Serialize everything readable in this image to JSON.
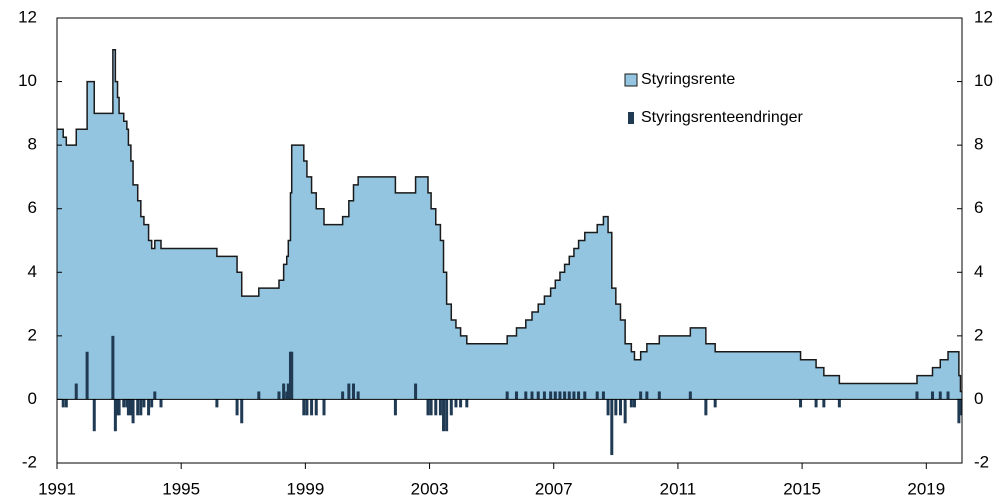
{
  "chart_data": {
    "type": "step-area-bar",
    "series": [
      {
        "name": "Styringsrente",
        "color": "#93c4e0",
        "line_color": "#1a1a1a",
        "x": [
          1991.0,
          1991.2,
          1991.3,
          1991.62,
          1991.97,
          1992.2,
          1992.8,
          1992.88,
          1992.95,
          1993.0,
          1993.15,
          1993.25,
          1993.3,
          1993.38,
          1993.45,
          1993.6,
          1993.7,
          1993.8,
          1993.95,
          1994.05,
          1994.15,
          1994.35,
          1996.15,
          1996.8,
          1996.95,
          1997.5,
          1998.15,
          1998.3,
          1998.4,
          1998.45,
          1998.52,
          1998.56,
          1998.95,
          1999.05,
          1999.2,
          1999.35,
          1999.6,
          2000.2,
          2000.4,
          2000.55,
          2000.7,
          2001.9,
          2002.55,
          2002.95,
          2003.05,
          2003.2,
          2003.35,
          2003.45,
          2003.55,
          2003.7,
          2003.85,
          2004.0,
          2004.2,
          2005.5,
          2005.8,
          2006.1,
          2006.3,
          2006.5,
          2006.7,
          2006.9,
          2007.05,
          2007.2,
          2007.35,
          2007.5,
          2007.65,
          2007.8,
          2008.0,
          2008.4,
          2008.6,
          2008.75,
          2008.87,
          2009.0,
          2009.15,
          2009.3,
          2009.5,
          2009.6,
          2009.8,
          2010.0,
          2010.4,
          2011.4,
          2011.9,
          2012.2,
          2014.95,
          2015.45,
          2015.7,
          2016.2,
          2018.7,
          2019.2,
          2019.45,
          2019.7,
          2020.05,
          2020.1
        ],
        "values": [
          8.5,
          8.25,
          8.0,
          8.5,
          10.0,
          9.0,
          11.0,
          10.0,
          9.5,
          9.0,
          8.75,
          8.5,
          8.0,
          7.5,
          6.75,
          6.25,
          5.75,
          5.5,
          5.0,
          4.75,
          5.0,
          4.75,
          4.5,
          4.0,
          3.25,
          3.5,
          3.75,
          4.25,
          4.5,
          5.0,
          6.5,
          8.0,
          7.5,
          7.0,
          6.5,
          6.0,
          5.5,
          5.75,
          6.25,
          6.75,
          7.0,
          6.5,
          7.0,
          6.5,
          6.0,
          5.5,
          5.0,
          4.0,
          3.0,
          2.5,
          2.25,
          2.0,
          1.75,
          2.0,
          2.25,
          2.5,
          2.75,
          3.0,
          3.25,
          3.5,
          3.75,
          4.0,
          4.25,
          4.5,
          4.75,
          5.0,
          5.25,
          5.5,
          5.75,
          5.25,
          3.5,
          3.0,
          2.5,
          1.75,
          1.5,
          1.25,
          1.5,
          1.75,
          2.0,
          2.25,
          1.75,
          1.5,
          1.25,
          1.0,
          0.75,
          0.5,
          0.75,
          1.0,
          1.25,
          1.5,
          0.75,
          0.25
        ]
      },
      {
        "name": "Styringsrenteendringer",
        "color": "#1f3a52",
        "x": [
          1991.2,
          1991.3,
          1991.62,
          1991.97,
          1992.2,
          1992.8,
          1992.88,
          1992.95,
          1993.0,
          1993.15,
          1993.25,
          1993.3,
          1993.38,
          1993.45,
          1993.6,
          1993.7,
          1993.8,
          1993.95,
          1994.05,
          1994.15,
          1994.35,
          1996.15,
          1996.8,
          1996.95,
          1997.5,
          1998.15,
          1998.3,
          1998.4,
          1998.45,
          1998.52,
          1998.56,
          1998.95,
          1999.05,
          1999.2,
          1999.35,
          1999.6,
          2000.2,
          2000.4,
          2000.55,
          2000.7,
          2001.9,
          2002.55,
          2002.95,
          2003.05,
          2003.2,
          2003.35,
          2003.45,
          2003.55,
          2003.7,
          2003.85,
          2004.0,
          2004.2,
          2005.5,
          2005.8,
          2006.1,
          2006.3,
          2006.5,
          2006.7,
          2006.9,
          2007.05,
          2007.2,
          2007.35,
          2007.5,
          2007.65,
          2007.8,
          2008.0,
          2008.4,
          2008.6,
          2008.75,
          2008.87,
          2009.0,
          2009.15,
          2009.3,
          2009.5,
          2009.6,
          2009.8,
          2010.0,
          2010.4,
          2011.4,
          2011.9,
          2012.2,
          2014.95,
          2015.45,
          2015.7,
          2016.2,
          2018.7,
          2019.2,
          2019.45,
          2019.7,
          2020.05,
          2020.1
        ],
        "values": [
          -0.25,
          -0.25,
          0.5,
          1.5,
          -1.0,
          2.0,
          -1.0,
          -0.5,
          -0.5,
          -0.25,
          -0.25,
          -0.5,
          -0.5,
          -0.75,
          -0.5,
          -0.5,
          -0.25,
          -0.5,
          -0.25,
          0.25,
          -0.25,
          -0.25,
          -0.5,
          -0.75,
          0.25,
          0.25,
          0.5,
          0.25,
          0.5,
          1.5,
          1.5,
          -0.5,
          -0.5,
          -0.5,
          -0.5,
          -0.5,
          0.25,
          0.5,
          0.5,
          0.25,
          -0.5,
          0.5,
          -0.5,
          -0.5,
          -0.5,
          -0.5,
          -1.0,
          -1.0,
          -0.5,
          -0.25,
          -0.25,
          -0.25,
          0.25,
          0.25,
          0.25,
          0.25,
          0.25,
          0.25,
          0.25,
          0.25,
          0.25,
          0.25,
          0.25,
          0.25,
          0.25,
          0.25,
          0.25,
          0.25,
          -0.5,
          -1.75,
          -0.5,
          -0.5,
          -0.75,
          -0.25,
          -0.25,
          0.25,
          0.25,
          0.25,
          0.25,
          -0.5,
          -0.25,
          -0.25,
          -0.25,
          -0.25,
          -0.25,
          0.25,
          0.25,
          0.25,
          0.25,
          -0.75,
          -0.5
        ]
      }
    ],
    "xlim": [
      1991,
      2020.15
    ],
    "xticks": [
      1991,
      1995,
      1999,
      2003,
      2007,
      2011,
      2015,
      2019
    ],
    "ylim": [
      -2,
      12
    ],
    "yticks": [
      -2,
      0,
      2,
      4,
      6,
      8,
      10,
      12
    ],
    "y2lim": [
      -2,
      12
    ],
    "y2ticks": [
      -2,
      0,
      2,
      4,
      6,
      8,
      10,
      12
    ],
    "legend_position": "upper right"
  }
}
